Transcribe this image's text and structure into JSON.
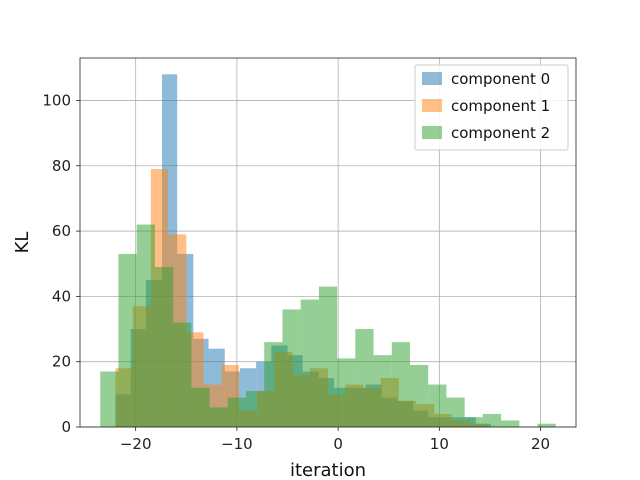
{
  "chart_data": {
    "type": "bar",
    "title": "",
    "xlabel": "iteration",
    "ylabel": "KL",
    "xlim": [
      -25.5,
      23.5
    ],
    "ylim": [
      0,
      113
    ],
    "xticks": [
      -20,
      -10,
      0,
      10,
      20
    ],
    "xtick_labels": [
      "−20",
      "−10",
      "0",
      "10",
      "20"
    ],
    "yticks": [
      0,
      20,
      40,
      60,
      80,
      100
    ],
    "ytick_labels": [
      "0",
      "20",
      "40",
      "60",
      "80",
      "100"
    ],
    "grid": true,
    "legend_position": "top-right",
    "bar_opacity": 0.5,
    "series": [
      {
        "name": "component 0",
        "color": "#1f77b4",
        "bins": [
          [
            -22.0,
            -20.5,
            10
          ],
          [
            -20.5,
            -19.0,
            30
          ],
          [
            -19.0,
            -17.4,
            45
          ],
          [
            -17.4,
            -15.9,
            108
          ],
          [
            -15.9,
            -14.3,
            53
          ],
          [
            -14.3,
            -12.8,
            27
          ],
          [
            -12.8,
            -11.2,
            24
          ],
          [
            -11.2,
            -9.7,
            17
          ],
          [
            -9.7,
            -8.1,
            18
          ],
          [
            -8.1,
            -6.6,
            20
          ],
          [
            -6.6,
            -5.0,
            25
          ],
          [
            -5.0,
            -3.5,
            22
          ],
          [
            -3.5,
            -1.9,
            17
          ],
          [
            -1.9,
            -0.4,
            15
          ],
          [
            -0.4,
            1.2,
            12
          ],
          [
            1.2,
            2.7,
            12
          ],
          [
            2.7,
            4.3,
            13
          ],
          [
            4.3,
            5.8,
            9
          ],
          [
            5.8,
            7.4,
            8
          ],
          [
            7.4,
            8.9,
            5
          ],
          [
            8.9,
            10.5,
            3
          ],
          [
            10.5,
            12.0,
            3
          ],
          [
            12.0,
            13.6,
            3
          ],
          [
            13.6,
            15.1,
            1
          ]
        ]
      },
      {
        "name": "component 1",
        "color": "#ff7f0e",
        "bins": [
          [
            -22.0,
            -20.3,
            18
          ],
          [
            -20.3,
            -18.5,
            37
          ],
          [
            -18.5,
            -16.8,
            79
          ],
          [
            -16.8,
            -15.0,
            59
          ],
          [
            -15.0,
            -13.3,
            29
          ],
          [
            -13.3,
            -11.5,
            13
          ],
          [
            -11.5,
            -9.8,
            19
          ],
          [
            -9.8,
            -8.0,
            5
          ],
          [
            -8.0,
            -6.3,
            11
          ],
          [
            -6.3,
            -4.5,
            23
          ],
          [
            -4.5,
            -2.8,
            16
          ],
          [
            -2.8,
            -1.0,
            18
          ],
          [
            -1.0,
            0.7,
            10
          ],
          [
            0.7,
            2.5,
            13
          ],
          [
            2.5,
            4.2,
            12
          ],
          [
            4.2,
            6.0,
            15
          ],
          [
            6.0,
            7.7,
            8
          ],
          [
            7.7,
            9.5,
            7
          ],
          [
            9.5,
            11.2,
            4
          ],
          [
            11.2,
            13.0,
            2
          ],
          [
            13.0,
            14.7,
            1
          ]
        ]
      },
      {
        "name": "component 2",
        "color": "#2ca02c",
        "bins": [
          [
            -23.5,
            -21.7,
            17
          ],
          [
            -21.7,
            -19.9,
            53
          ],
          [
            -19.9,
            -18.1,
            62
          ],
          [
            -18.1,
            -16.3,
            49
          ],
          [
            -16.3,
            -14.5,
            32
          ],
          [
            -14.5,
            -12.7,
            12
          ],
          [
            -12.7,
            -10.9,
            6
          ],
          [
            -10.9,
            -9.1,
            9
          ],
          [
            -9.1,
            -7.3,
            11
          ],
          [
            -7.3,
            -5.5,
            26
          ],
          [
            -5.5,
            -3.7,
            36
          ],
          [
            -3.7,
            -1.9,
            39
          ],
          [
            -1.9,
            -0.1,
            43
          ],
          [
            -0.1,
            1.7,
            21
          ],
          [
            1.7,
            3.5,
            30
          ],
          [
            3.5,
            5.3,
            22
          ],
          [
            5.3,
            7.1,
            26
          ],
          [
            7.1,
            8.9,
            19
          ],
          [
            8.9,
            10.7,
            13
          ],
          [
            10.7,
            12.5,
            9
          ],
          [
            12.5,
            14.3,
            3
          ],
          [
            14.3,
            16.1,
            4
          ],
          [
            16.1,
            17.9,
            2
          ],
          [
            17.9,
            19.7,
            0
          ],
          [
            19.7,
            21.5,
            1
          ]
        ]
      }
    ]
  }
}
